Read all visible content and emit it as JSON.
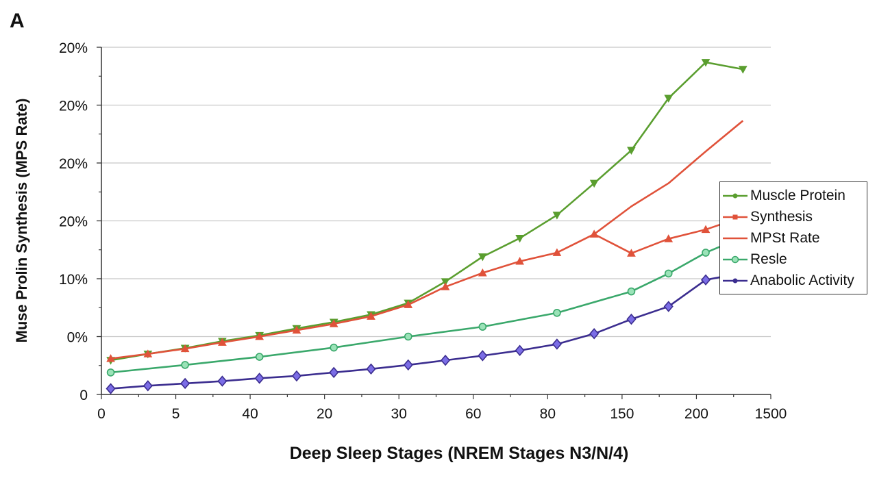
{
  "panel_label": "A",
  "chart_data": {
    "type": "line",
    "title": "",
    "xlabel": "Deep Sleep Stages (NREM Stages N3/N/4)",
    "ylabel": "Muse Prolin Synthesis (MPS Rate)",
    "y_tick_labels": [
      "0",
      "0%",
      "10%",
      "20%",
      "20%",
      "20%",
      "20%"
    ],
    "x_tick_labels": [
      "0",
      "5",
      "40",
      "20",
      "30",
      "60",
      "80",
      "150",
      "200",
      "1500"
    ],
    "x_tick_positions": [
      0,
      2,
      4,
      6,
      8,
      10,
      12,
      14,
      16,
      18
    ],
    "ylim": [
      0,
      6
    ],
    "xlim": [
      0,
      18
    ],
    "grid": "horizontal",
    "legend_placement": "right",
    "series": [
      {
        "name": "Muscle Protein",
        "color": "#5a9e2f",
        "marker": "triangle-down",
        "x": [
          0.25,
          1.25,
          2.25,
          3.25,
          4.25,
          5.25,
          6.25,
          7.25,
          8.25,
          9.25,
          10.25,
          11.25,
          12.25,
          13.25,
          14.25,
          15.25,
          16.25,
          17.25
        ],
        "values": [
          0.59,
          0.7,
          0.8,
          0.92,
          1.02,
          1.14,
          1.25,
          1.38,
          1.58,
          1.95,
          2.38,
          2.7,
          3.1,
          3.65,
          4.22,
          5.12,
          5.74,
          5.62
        ]
      },
      {
        "name": "Synthesis",
        "color": "#e0523a",
        "marker": "triangle-up",
        "x": [
          0.25,
          1.25,
          2.25,
          3.25,
          4.25,
          5.25,
          6.25,
          7.25,
          8.25,
          9.25,
          10.25,
          11.25,
          12.25,
          13.25,
          14.25,
          15.25,
          16.25,
          17.25
        ],
        "values": [
          0.62,
          0.7,
          0.79,
          0.9,
          1.0,
          1.11,
          1.22,
          1.35,
          1.55,
          1.86,
          2.1,
          2.3,
          2.45,
          2.77,
          2.44,
          2.69,
          2.85,
          3.07
        ]
      },
      {
        "name": "MPSt Rate",
        "color": "#e0523a",
        "marker": "none",
        "x": [
          13.25,
          14.25,
          15.25,
          16.25,
          17.25
        ],
        "values": [
          2.77,
          3.25,
          3.65,
          4.2,
          4.73
        ]
      },
      {
        "name": "Resle",
        "color": "#3aa86b",
        "marker": "circle",
        "x": [
          0.25,
          2.25,
          4.25,
          6.25,
          8.25,
          10.25,
          12.25,
          14.25,
          15.25,
          16.25,
          17.25
        ],
        "values": [
          0.38,
          0.51,
          0.65,
          0.81,
          1.0,
          1.17,
          1.41,
          1.78,
          2.09,
          2.45,
          2.72
        ]
      },
      {
        "name": "Anabolic Activity",
        "color": "#3b2d8f",
        "marker": "diamond",
        "x": [
          0.25,
          1.25,
          2.25,
          3.25,
          4.25,
          5.25,
          6.25,
          7.25,
          8.25,
          9.25,
          10.25,
          11.25,
          12.25,
          13.25,
          14.25,
          15.25,
          16.25,
          17.25
        ],
        "values": [
          0.1,
          0.15,
          0.19,
          0.23,
          0.28,
          0.32,
          0.38,
          0.44,
          0.51,
          0.59,
          0.67,
          0.76,
          0.87,
          1.05,
          1.3,
          1.52,
          1.98,
          2.1
        ]
      }
    ],
    "legend_entries": [
      {
        "label": "Muscle Protein",
        "color": "#5a9e2f",
        "marker": "circle"
      },
      {
        "label": "Synthesis",
        "color": "#e0523a",
        "marker": "square"
      },
      {
        "label": "MPSt Rate",
        "color": "#e0523a",
        "marker": "none"
      },
      {
        "label": "Resle",
        "color": "#3aa86b",
        "marker": "circle-open"
      },
      {
        "label": "Anabolic Activity",
        "color": "#3b2d8f",
        "marker": "circle"
      }
    ]
  }
}
